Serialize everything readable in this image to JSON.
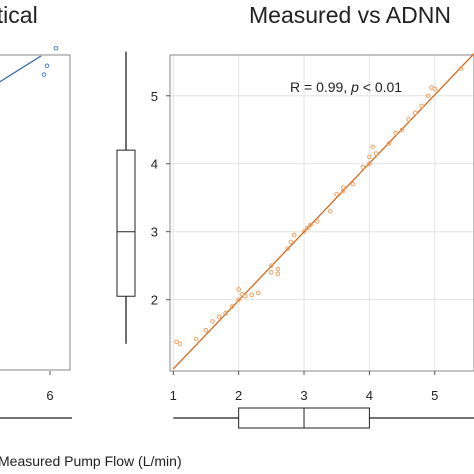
{
  "chart_data": [
    {
      "type": "scatter",
      "title": "atical",
      "xticks": [
        "6"
      ],
      "xtick_values": [
        6
      ],
      "fit_color": "#2f5f9e",
      "point_color": "#4a80c8",
      "points": [
        [
          6.2,
          5.5
        ],
        [
          5.9,
          5.2
        ],
        [
          5.8,
          5.05
        ]
      ]
    },
    {
      "type": "scatter",
      "title": "Measured vs ADNN",
      "xlabel": "Measured Pump Flow (L/min)",
      "stat_text": "R = 0.99, ",
      "stat_p": "p",
      "stat_tail": " < 0.01",
      "xlim": [
        0.95,
        5.6
      ],
      "ylim": [
        0.95,
        5.6
      ],
      "xticks": [
        "1",
        "2",
        "3",
        "4",
        "5"
      ],
      "xtick_values": [
        1,
        2,
        3,
        4,
        5
      ],
      "yticks": [
        "2",
        "3",
        "4",
        "5"
      ],
      "ytick_values": [
        2,
        3,
        4,
        5
      ],
      "grid": true,
      "fit_color": "#d2691e",
      "point_color": "#f0a060",
      "fit_line": [
        [
          1.0,
          0.98
        ],
        [
          5.62,
          5.64
        ]
      ],
      "points": [
        [
          1.05,
          1.38
        ],
        [
          1.1,
          1.35
        ],
        [
          1.35,
          1.42
        ],
        [
          1.5,
          1.55
        ],
        [
          1.6,
          1.68
        ],
        [
          1.7,
          1.75
        ],
        [
          1.8,
          1.8
        ],
        [
          1.9,
          1.9
        ],
        [
          2.0,
          2.0
        ],
        [
          2.0,
          2.15
        ],
        [
          2.05,
          2.08
        ],
        [
          2.1,
          2.05
        ],
        [
          2.2,
          2.07
        ],
        [
          2.3,
          2.1
        ],
        [
          2.5,
          2.4
        ],
        [
          2.5,
          2.5
        ],
        [
          2.6,
          2.45
        ],
        [
          2.6,
          2.38
        ],
        [
          2.75,
          2.75
        ],
        [
          2.8,
          2.85
        ],
        [
          2.85,
          2.95
        ],
        [
          3.0,
          3.0
        ],
        [
          3.05,
          3.05
        ],
        [
          3.1,
          3.1
        ],
        [
          3.2,
          3.15
        ],
        [
          3.4,
          3.3
        ],
        [
          3.5,
          3.55
        ],
        [
          3.6,
          3.6
        ],
        [
          3.6,
          3.65
        ],
        [
          3.75,
          3.7
        ],
        [
          3.9,
          3.95
        ],
        [
          4.0,
          4.0
        ],
        [
          4.0,
          4.1
        ],
        [
          4.05,
          4.25
        ],
        [
          4.1,
          4.15
        ],
        [
          4.3,
          4.3
        ],
        [
          4.4,
          4.45
        ],
        [
          4.5,
          4.5
        ],
        [
          4.6,
          4.65
        ],
        [
          4.7,
          4.75
        ],
        [
          4.8,
          4.85
        ],
        [
          4.9,
          5.0
        ],
        [
          5.0,
          5.1
        ],
        [
          4.95,
          5.12
        ],
        [
          5.4,
          5.4
        ]
      ],
      "y_box": {
        "min": 1.35,
        "q1": 2.05,
        "median": 3.0,
        "q3": 4.2,
        "max": 5.65
      },
      "x_box": {
        "min": 1.0,
        "q1": 2.0,
        "median": 3.0,
        "q3": 4.0,
        "max": 5.65
      }
    }
  ]
}
